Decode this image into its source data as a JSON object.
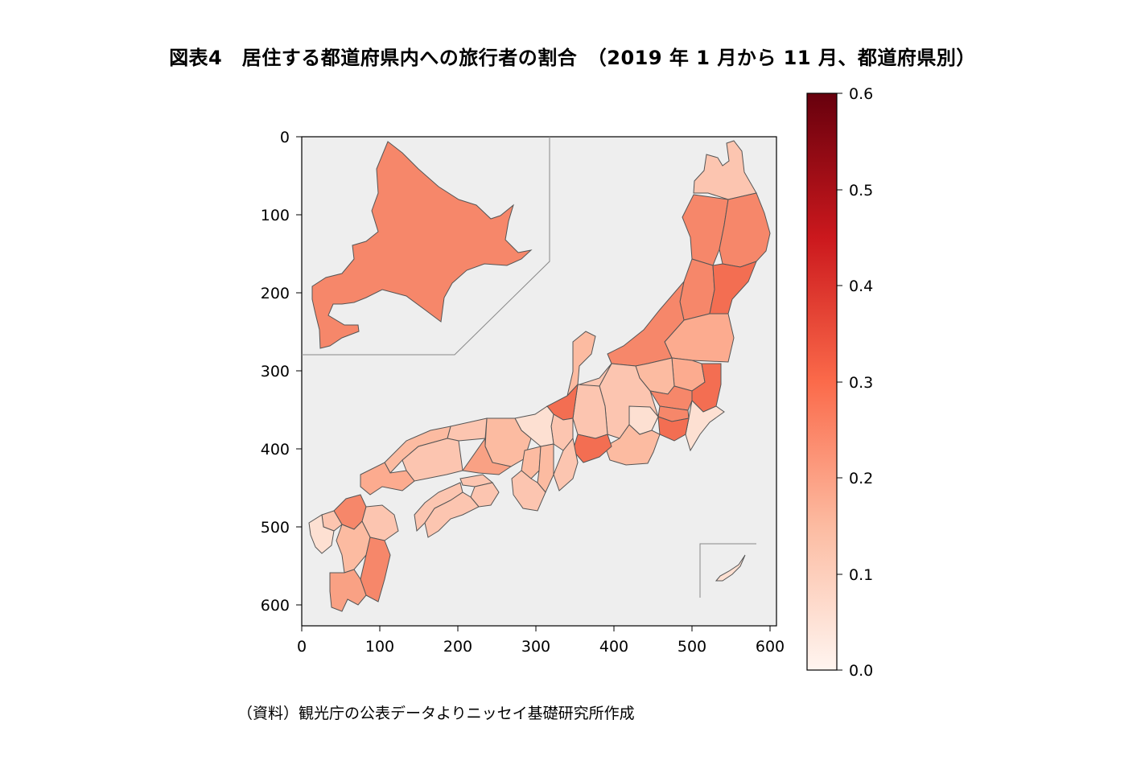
{
  "title": "図表4　居住する都道府県内への旅行者の割合　（2019 年 1 月から 11 月、都道府県別）",
  "source": "（資料）観光庁の公表データよりニッセイ基礎研究所作成",
  "map": {
    "background_color": "#eeeeee",
    "colormap": "Reds",
    "colormap_stops": [
      "#fff5f0",
      "#fcbba1",
      "#fb6a4a",
      "#cb181d",
      "#67000d"
    ],
    "x_ticks": [
      "0",
      "100",
      "200",
      "300",
      "400",
      "500",
      "600"
    ],
    "y_ticks": [
      "0",
      "100",
      "200",
      "300",
      "400",
      "500",
      "600"
    ],
    "colorbar_ticks": [
      "0.0",
      "0.1",
      "0.2",
      "0.3",
      "0.4",
      "0.5",
      "0.6"
    ],
    "colorbar_range": [
      0,
      0.6
    ]
  }
}
